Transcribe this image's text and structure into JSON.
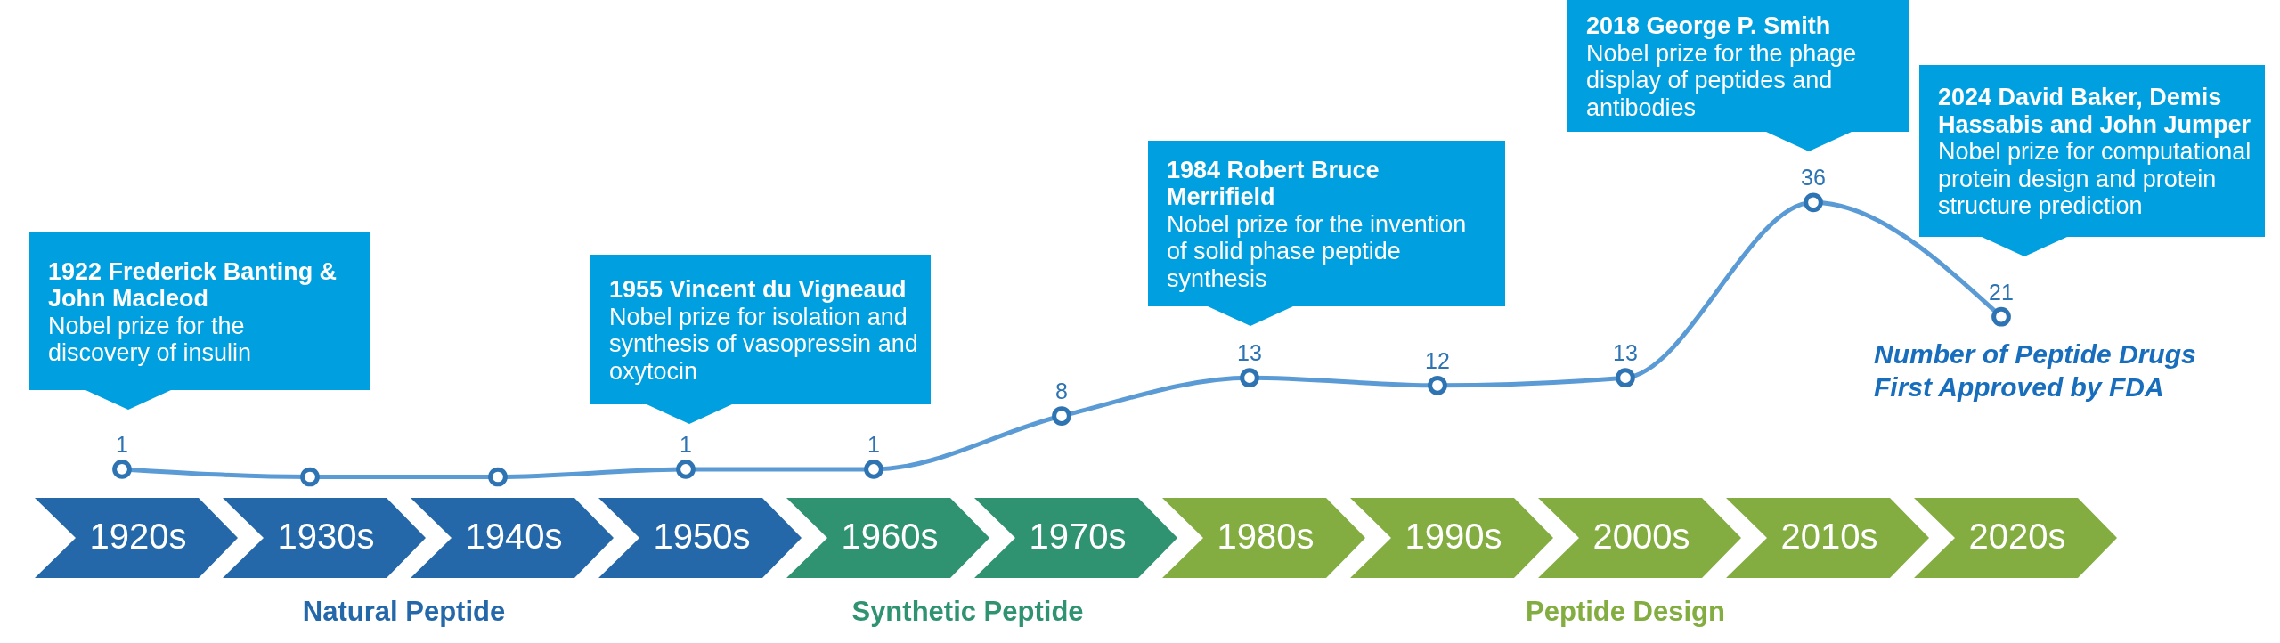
{
  "chart_data": {
    "type": "line",
    "categories": [
      "1920s",
      "1930s",
      "1940s",
      "1950s",
      "1960s",
      "1970s",
      "1980s",
      "1990s",
      "2000s",
      "2010s",
      "2020s"
    ],
    "series": [
      {
        "name": "Number of Peptide Drugs\nFirst Approved by FDA",
        "color": "#5b9bd5",
        "values": [
          1,
          0,
          0,
          1,
          1,
          8,
          13,
          12,
          13,
          36,
          21
        ],
        "value_labels": [
          "1",
          null,
          null,
          "1",
          "1",
          "8",
          "13",
          "12",
          "13",
          "36",
          "21"
        ]
      }
    ],
    "marker": "circle",
    "line_style": "solid",
    "tick_labels": "x",
    "annotations": [
      "1922 Frederick Banting &\nJohn Macleod",
      "Nobel prize for the\ndiscovery of insulin",
      "1955 Vincent du Vigneaud",
      "Nobel prize for isolation and\nsynthesis of vasopressin and\noxytocin",
      "1984 Robert Bruce\nMerrifield",
      "Nobel prize for the invention\nof solid phase peptide\nsynthesis",
      "2018 George P. Smith",
      "Nobel prize for the phage\ndisplay of peptides and\nantibodies",
      "2024 David Baker, Demis\nHassabis and John Jumper",
      "Nobel prize for computational\nprotein design and protein\nstructure prediction",
      "Natural Peptide",
      "Synthetic Peptide",
      "Peptide Design"
    ]
  }
}
